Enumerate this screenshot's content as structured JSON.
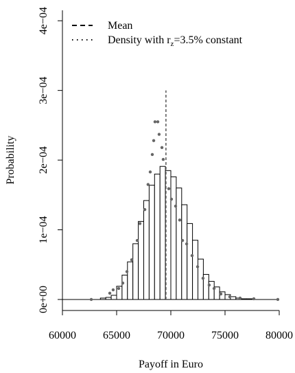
{
  "chart_data": {
    "type": "histogram",
    "x_label": "Payoff in Euro",
    "y_label": "Probability",
    "bins": [
      63500,
      64000,
      64500,
      65000,
      65500,
      66000,
      66500,
      67000,
      67500,
      68000,
      68500,
      69000,
      69500,
      70000,
      70500,
      71000,
      71500,
      72000,
      72500,
      73000,
      73500,
      74000,
      74500,
      75000,
      75500,
      76000,
      76500,
      77000,
      77500
    ],
    "counts": [
      2e-06,
      3e-06,
      6e-06,
      1.9e-05,
      3.5e-05,
      5.4e-05,
      8e-05,
      0.000112,
      0.000142,
      0.000164,
      0.00018,
      0.000191,
      0.000185,
      0.000176,
      0.00016,
      0.000136,
      0.000109,
      8.5e-05,
      5.8e-05,
      3.6e-05,
      2.6e-05,
      1.8e-05,
      1.1e-05,
      7e-06,
      4e-06,
      2e-06,
      1e-06,
      1e-06
    ],
    "bar_fill": "#ffffff",
    "bar_stroke": "#000000",
    "mean": {
      "name": "Mean",
      "x": 69550,
      "y_end": 0.0003,
      "color": "#555555"
    },
    "density": {
      "name_parts": [
        "Density with r",
        "z",
        "=3.5% constant"
      ],
      "color": "#666666",
      "x": [
        62660,
        64370,
        64680,
        65190,
        65570,
        65950,
        66390,
        66900,
        67150,
        67600,
        67900,
        68100,
        68290,
        68420,
        68540,
        68800,
        68920,
        69180,
        69300,
        69810,
        70060,
        70440,
        70820,
        71080,
        71460,
        71960,
        72470,
        72970,
        73540,
        73990,
        74620,
        75440,
        76390,
        77660,
        79870
      ],
      "y": [
        0,
        9e-06,
        1.38e-05,
        1.58e-05,
        2.36e-05,
        4e-05,
        5.7e-05,
        8.47e-05,
        0.000109,
        0.000129,
        0.000165,
        0.000183,
        0.000208,
        0.000228,
        0.000255,
        0.000255,
        0.000237,
        0.000218,
        0.000201,
        0.000159,
        0.000144,
        0.000134,
        0.000114,
        8.47e-05,
        7.98e-05,
        6.3e-05,
        4.7e-05,
        3.05e-05,
        2.07e-05,
        1.58e-05,
        7.9e-06,
        3.9e-06,
        2e-06,
        1e-06,
        0
      ]
    },
    "xlim": [
      60000,
      80000
    ],
    "xticks": [
      60000,
      65000,
      70000,
      75000,
      80000
    ],
    "ylim": [
      -1.58e-05,
      0.000415
    ],
    "yticks": [
      {
        "value": 0,
        "label": "0e+00"
      },
      {
        "value": 0.0001,
        "label": "1e−04"
      },
      {
        "value": 0.0002,
        "label": "2e−04"
      },
      {
        "value": 0.0003,
        "label": "3e−04"
      },
      {
        "value": 0.0004,
        "label": "4e−04"
      }
    ],
    "legend": "top-left"
  }
}
